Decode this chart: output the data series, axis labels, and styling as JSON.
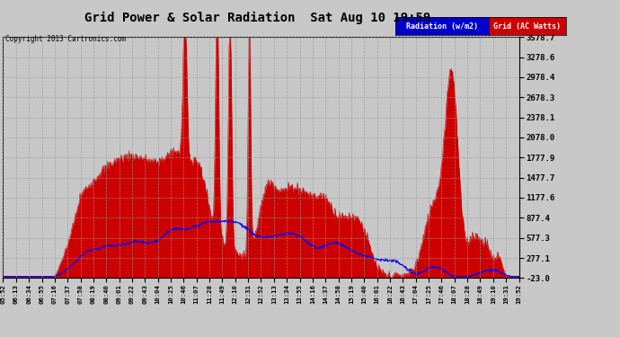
{
  "title": "Grid Power & Solar Radiation  Sat Aug 10 19:59",
  "copyright": "Copyright 2013 Cartronics.com",
  "background_color": "#c8c8c8",
  "plot_bg_color": "#c8c8c8",
  "yticks": [
    3578.7,
    3278.6,
    2978.4,
    2678.3,
    2378.1,
    2078.0,
    1777.9,
    1477.7,
    1177.6,
    877.4,
    577.3,
    277.1,
    -23.0
  ],
  "ymin": -23.0,
  "ymax": 3578.7,
  "legend_radiation_label": "Radiation (w/m2)",
  "legend_grid_label": "Grid (AC Watts)",
  "legend_radiation_bg": "#0000cc",
  "legend_grid_bg": "#cc0000",
  "grid_color": "#999999",
  "radiation_fill_color": "#cc0000",
  "radiation_line_color": "#cc0000",
  "grid_line_color": "#0000ff",
  "spine_color": "#000000",
  "x_labels": [
    "05:52",
    "06:13",
    "06:34",
    "06:55",
    "07:16",
    "07:37",
    "07:58",
    "08:19",
    "08:40",
    "09:01",
    "09:22",
    "09:43",
    "10:04",
    "10:25",
    "10:46",
    "11:07",
    "11:28",
    "11:49",
    "12:10",
    "12:31",
    "12:52",
    "13:13",
    "13:34",
    "13:55",
    "14:16",
    "14:37",
    "14:58",
    "15:19",
    "15:40",
    "16:01",
    "16:22",
    "16:43",
    "17:04",
    "17:25",
    "17:46",
    "18:07",
    "18:28",
    "18:49",
    "19:10",
    "19:31",
    "19:52"
  ]
}
